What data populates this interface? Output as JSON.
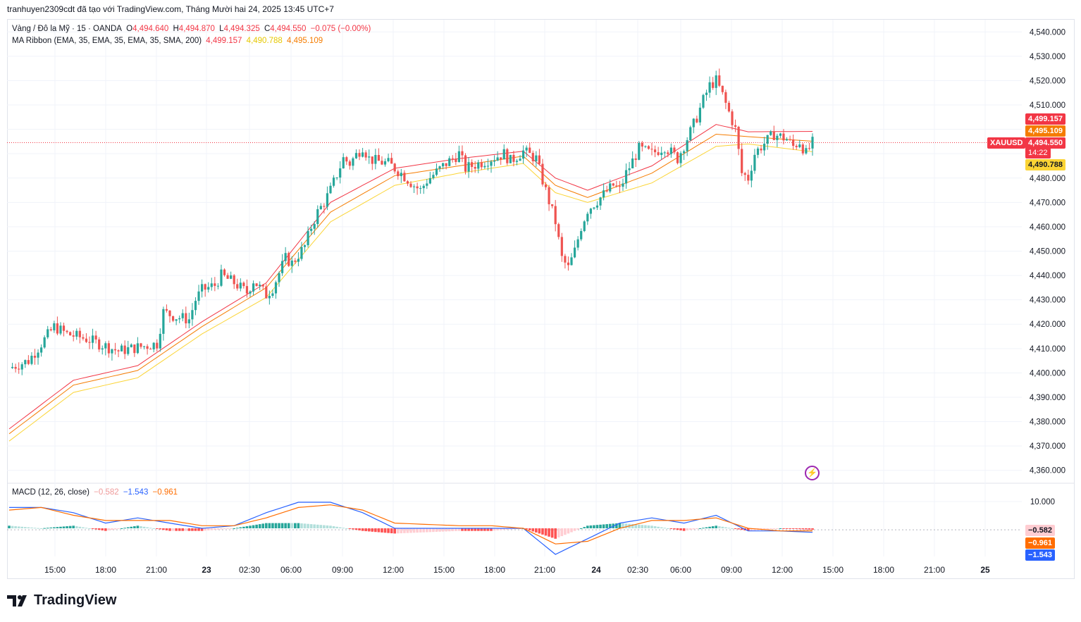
{
  "header": {
    "text": "tranhuyen2309cdt đã tạo với TradingView.com, Tháng Mười hai 24, 2025 13:45 UTC+7"
  },
  "legend": {
    "symbol": "Vàng / Đô la Mỹ · 15 · OANDA",
    "o_label": "O",
    "o_value": "4,494.640",
    "h_label": "H",
    "h_value": "4,494.870",
    "l_label": "L",
    "l_value": "4,494.325",
    "c_label": "C",
    "c_value": "4,494.550",
    "change": "−0.075 (−0.00%)",
    "ribbon_label": "MA Ribbon (EMA, 35, EMA, 35, EMA, 35, SMA, 200)",
    "ribbon_v1": "4,499.157",
    "ribbon_v2": "4,490.788",
    "ribbon_v3": "4,495.109",
    "macd_label": "MACD (12, 26, close)",
    "macd_hist": "−0.582",
    "macd_line": "−1.543",
    "macd_signal": "−0.961"
  },
  "colors": {
    "up": "#26a69a",
    "down": "#ef5350",
    "ma1": "#f23645",
    "ma2": "#f57c00",
    "ma3": "#fbd435",
    "macd": "#2962ff",
    "signal": "#ff6d00",
    "hist_up": "#26a69a",
    "hist_up_light": "#b2dfdb",
    "hist_down": "#ff5252",
    "hist_down_light": "#ffcdd2"
  },
  "price_axis": [
    "4,540.000",
    "4,530.000",
    "4,520.000",
    "4,510.000",
    "4,480.000",
    "4,470.000",
    "4,460.000",
    "4,450.000",
    "4,440.000",
    "4,430.000",
    "4,420.000",
    "4,410.000",
    "4,400.000",
    "4,390.000",
    "4,380.000",
    "4,370.000",
    "4,360.000"
  ],
  "macd_axis": [
    "10.000"
  ],
  "tags": {
    "ma1": "4,499.157",
    "ma3": "4,495.109",
    "price": "4,494.550",
    "symbol": "XAUUSD",
    "countdown": "14:22",
    "ma2": "4,490.788",
    "macd_hist": "−0.582",
    "macd_signal": "−0.961",
    "macd_line": "−1.543"
  },
  "time_axis": [
    "15:00",
    "18:00",
    "21:00",
    "23",
    "02:30",
    "06:00",
    "09:00",
    "12:00",
    "15:00",
    "18:00",
    "21:00",
    "24",
    "02:30",
    "06:00",
    "09:00",
    "12:00",
    "15:00",
    "18:00",
    "21:00",
    "25"
  ],
  "brand": "TradingView",
  "chart_data": {
    "type": "candlestick",
    "symbol": "XAUUSD",
    "interval": "15",
    "ylim": [
      4355,
      4545
    ],
    "price_ticks": [
      4360,
      4370,
      4380,
      4390,
      4400,
      4410,
      4420,
      4430,
      4440,
      4450,
      4460,
      4470,
      4480,
      4490,
      4500,
      4510,
      4520,
      4530,
      4540
    ],
    "last_price": 4494.55,
    "close_path": [
      [
        0,
        4402
      ],
      [
        6,
        4405
      ],
      [
        10,
        4412
      ],
      [
        14,
        4419
      ],
      [
        18,
        4416
      ],
      [
        24,
        4414
      ],
      [
        30,
        4411
      ],
      [
        34,
        4409
      ],
      [
        38,
        4410
      ],
      [
        42,
        4411
      ],
      [
        46,
        4412
      ],
      [
        48,
        4425
      ],
      [
        52,
        4423
      ],
      [
        56,
        4422
      ],
      [
        58,
        4430
      ],
      [
        60,
        4434
      ],
      [
        64,
        4436
      ],
      [
        66,
        4440
      ],
      [
        70,
        4437
      ],
      [
        74,
        4433
      ],
      [
        76,
        4438
      ],
      [
        80,
        4432
      ],
      [
        82,
        4435
      ],
      [
        86,
        4447
      ],
      [
        88,
        4445
      ],
      [
        92,
        4452
      ],
      [
        94,
        4460
      ],
      [
        96,
        4466
      ],
      [
        98,
        4470
      ],
      [
        100,
        4475
      ],
      [
        104,
        4488
      ],
      [
        106,
        4486
      ],
      [
        110,
        4493
      ],
      [
        112,
        4488
      ],
      [
        114,
        4487
      ],
      [
        118,
        4486
      ],
      [
        122,
        4482
      ],
      [
        126,
        4477
      ],
      [
        128,
        4475
      ],
      [
        130,
        4479
      ],
      [
        136,
        4486
      ],
      [
        140,
        4490
      ],
      [
        142,
        4484
      ],
      [
        146,
        4486
      ],
      [
        150,
        4488
      ],
      [
        154,
        4490
      ],
      [
        156,
        4487
      ],
      [
        160,
        4491
      ],
      [
        164,
        4488
      ],
      [
        166,
        4479
      ],
      [
        170,
        4462
      ],
      [
        172,
        4447
      ],
      [
        174,
        4443
      ],
      [
        176,
        4450
      ],
      [
        178,
        4460
      ],
      [
        180,
        4467
      ],
      [
        184,
        4472
      ],
      [
        188,
        4477
      ],
      [
        190,
        4475
      ],
      [
        192,
        4482
      ],
      [
        196,
        4492
      ],
      [
        200,
        4490
      ],
      [
        204,
        4493
      ],
      [
        208,
        4488
      ],
      [
        212,
        4499
      ],
      [
        214,
        4505
      ],
      [
        216,
        4512
      ],
      [
        218,
        4518
      ],
      [
        220,
        4520
      ],
      [
        222,
        4514
      ],
      [
        224,
        4507
      ],
      [
        226,
        4500
      ],
      [
        228,
        4482
      ],
      [
        230,
        4480
      ],
      [
        232,
        4490
      ],
      [
        234,
        4493
      ],
      [
        238,
        4498
      ],
      [
        242,
        4496
      ],
      [
        244,
        4493
      ],
      [
        246,
        4495
      ],
      [
        248,
        4490
      ],
      [
        250,
        4494.5
      ]
    ],
    "ma_ribbon": [
      {
        "name": "EMA 35",
        "value": 4499.157,
        "path": [
          [
            0,
            4377
          ],
          [
            20,
            4397
          ],
          [
            40,
            4403
          ],
          [
            60,
            4421
          ],
          [
            80,
            4437
          ],
          [
            100,
            4470
          ],
          [
            120,
            4484
          ],
          [
            140,
            4488
          ],
          [
            160,
            4491
          ],
          [
            170,
            4480
          ],
          [
            180,
            4475
          ],
          [
            200,
            4485
          ],
          [
            220,
            4502
          ],
          [
            230,
            4499
          ],
          [
            250,
            4499.157
          ]
        ]
      },
      {
        "name": "EMA 35",
        "value": 4495.109,
        "path": [
          [
            0,
            4375
          ],
          [
            20,
            4395
          ],
          [
            40,
            4401
          ],
          [
            60,
            4419
          ],
          [
            80,
            4435
          ],
          [
            100,
            4466
          ],
          [
            120,
            4481
          ],
          [
            140,
            4485
          ],
          [
            160,
            4489
          ],
          [
            170,
            4477
          ],
          [
            180,
            4472
          ],
          [
            200,
            4482
          ],
          [
            220,
            4498
          ],
          [
            230,
            4497
          ],
          [
            250,
            4495.109
          ]
        ]
      },
      {
        "name": "SMA 200",
        "value": 4490.788,
        "path": [
          [
            0,
            4372
          ],
          [
            20,
            4392
          ],
          [
            40,
            4398
          ],
          [
            60,
            4416
          ],
          [
            80,
            4431
          ],
          [
            100,
            4462
          ],
          [
            120,
            4477
          ],
          [
            140,
            4482
          ],
          [
            160,
            4486
          ],
          [
            170,
            4474
          ],
          [
            180,
            4470
          ],
          [
            200,
            4478
          ],
          [
            220,
            4493
          ],
          [
            230,
            4494
          ],
          [
            250,
            4490.788
          ]
        ]
      }
    ],
    "macd": {
      "histogram": -0.582,
      "macd": -1.543,
      "signal": -0.961,
      "macd_path": [
        [
          0,
          8
        ],
        [
          10,
          8
        ],
        [
          20,
          6
        ],
        [
          30,
          2
        ],
        [
          40,
          4
        ],
        [
          50,
          2
        ],
        [
          60,
          0
        ],
        [
          70,
          1
        ],
        [
          80,
          6
        ],
        [
          90,
          10
        ],
        [
          100,
          10
        ],
        [
          110,
          6
        ],
        [
          120,
          0
        ],
        [
          140,
          0
        ],
        [
          150,
          0
        ],
        [
          160,
          0
        ],
        [
          170,
          -10
        ],
        [
          180,
          -4
        ],
        [
          190,
          2
        ],
        [
          200,
          4
        ],
        [
          210,
          2
        ],
        [
          220,
          5
        ],
        [
          230,
          -1
        ],
        [
          240,
          -1
        ],
        [
          250,
          -1.543
        ]
      ],
      "signal_path": [
        [
          0,
          7
        ],
        [
          10,
          8
        ],
        [
          20,
          5
        ],
        [
          30,
          3
        ],
        [
          40,
          3
        ],
        [
          50,
          3
        ],
        [
          60,
          1
        ],
        [
          70,
          1
        ],
        [
          80,
          4
        ],
        [
          90,
          8
        ],
        [
          100,
          9
        ],
        [
          110,
          7
        ],
        [
          120,
          2
        ],
        [
          140,
          1
        ],
        [
          150,
          1
        ],
        [
          160,
          0
        ],
        [
          170,
          -6
        ],
        [
          180,
          -5
        ],
        [
          190,
          0
        ],
        [
          200,
          3
        ],
        [
          210,
          3
        ],
        [
          220,
          4
        ],
        [
          230,
          0
        ],
        [
          240,
          -1
        ],
        [
          250,
          -0.961
        ]
      ]
    }
  }
}
